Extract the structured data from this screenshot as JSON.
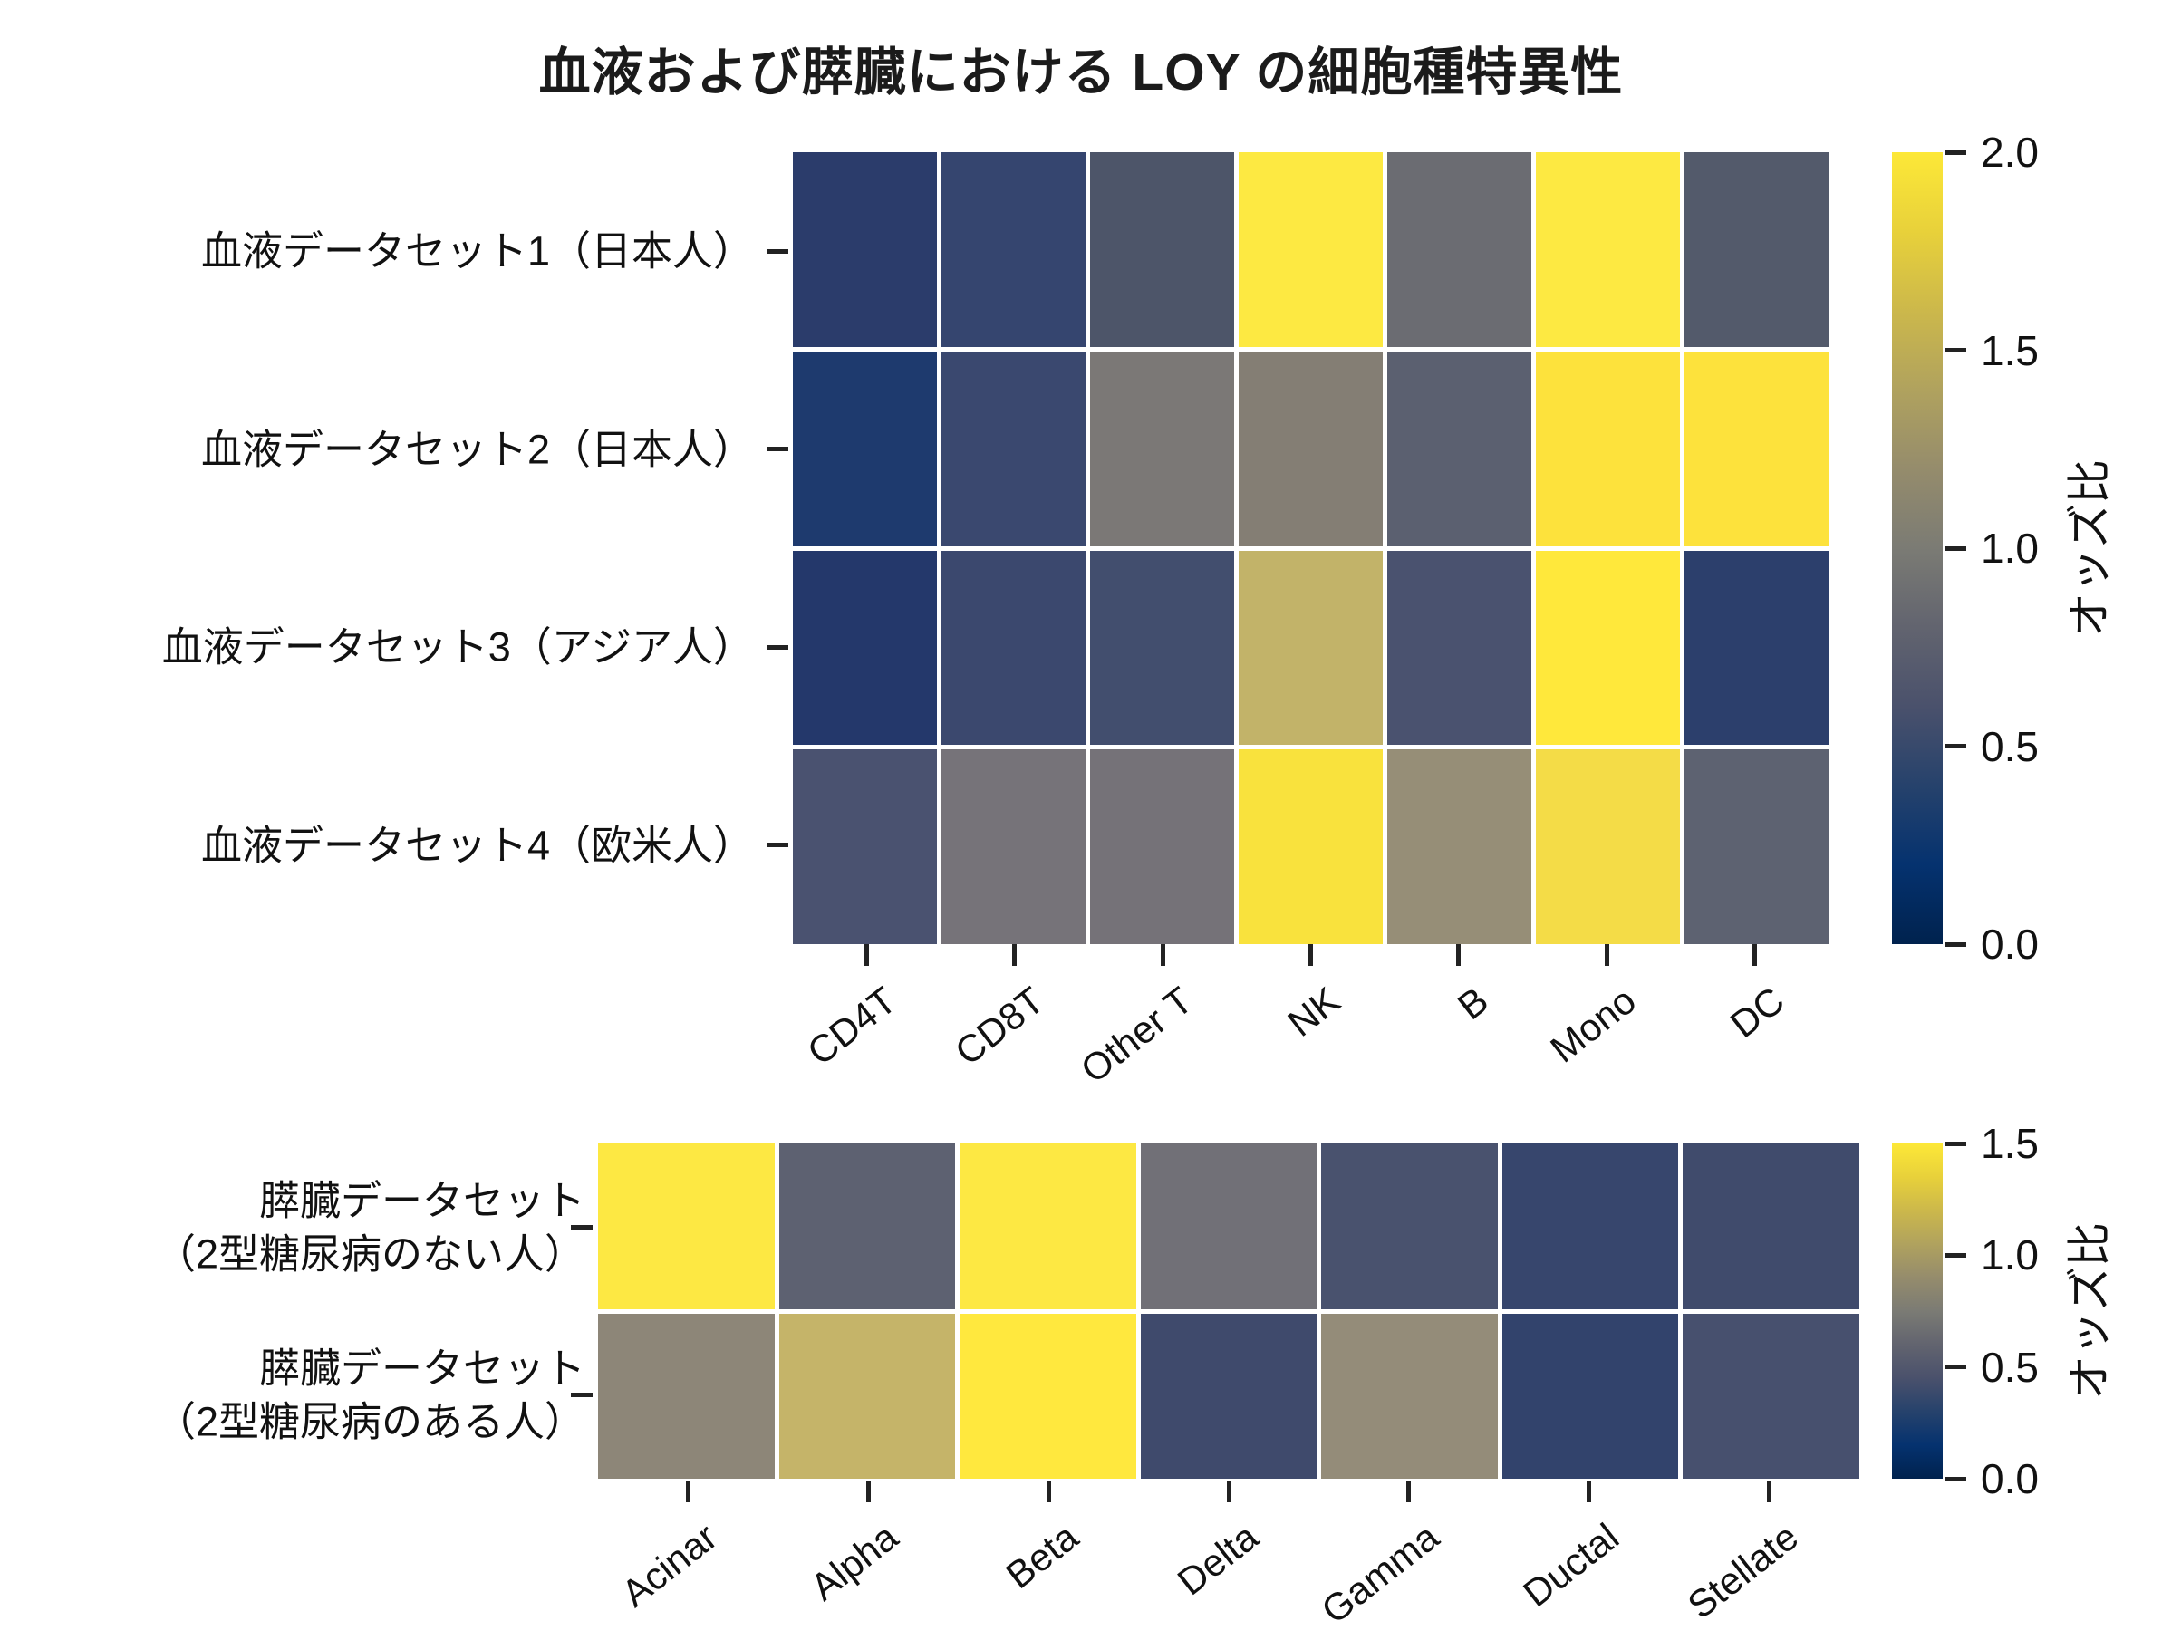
{
  "title": "血液および膵臓における LOY の細胞種特異性",
  "colors": {
    "background": "#ffffff",
    "text": "#1a1a1a",
    "tick": "#222222",
    "gridline": "#ffffff",
    "cividis_stops_bottom_to_top": [
      "#00224e",
      "#05326f",
      "#26426c",
      "#4a516c",
      "#62646f",
      "#7b7b74",
      "#958c6c",
      "#b0a25e",
      "#ccb84b",
      "#e8d13a",
      "#fde838"
    ]
  },
  "chart_data": [
    {
      "type": "heatmap",
      "name": "blood",
      "title": "",
      "categories": [
        "CD4T",
        "CD8T",
        "Other T",
        "NK",
        "B",
        "Mono",
        "DC"
      ],
      "rows": [
        {
          "lines": [
            "血液データセット1（日本人）"
          ]
        },
        {
          "lines": [
            "血液データセット2（日本人）"
          ]
        },
        {
          "lines": [
            "血液データセット3（アジア人）"
          ]
        },
        {
          "lines": [
            "血液データセット4（欧米人）"
          ]
        }
      ],
      "values": [
        [
          0.35,
          0.45,
          0.55,
          2.0,
          0.85,
          2.0,
          0.6
        ],
        [
          0.25,
          0.5,
          0.95,
          1.0,
          0.7,
          2.0,
          2.0
        ],
        [
          0.3,
          0.45,
          0.5,
          1.45,
          0.55,
          2.0,
          0.35
        ],
        [
          0.55,
          0.95,
          0.95,
          1.95,
          1.15,
          1.9,
          0.7
        ]
      ],
      "cell_colors": [
        [
          "#2b3c6b",
          "#35456f",
          "#4d5569",
          "#fde942",
          "#6b6c72",
          "#fde942",
          "#535a6b"
        ],
        [
          "#1e3a6e",
          "#3a486f",
          "#7b7876",
          "#847e74",
          "#5b6070",
          "#fde23c",
          "#fde23c"
        ],
        [
          "#24386b",
          "#3b486e",
          "#424e6e",
          "#c2b369",
          "#4a526f",
          "#ffe83b",
          "#2c3f6c"
        ],
        [
          "#4a5270",
          "#767379",
          "#757278",
          "#f9e23d",
          "#968e77",
          "#f4dc47",
          "#5d6271"
        ]
      ],
      "colorbar": {
        "label": "オッズ比",
        "min": 0.0,
        "max": 2.0,
        "ticks": [
          "2.0",
          "1.5",
          "1.0",
          "0.5",
          "0.0"
        ]
      },
      "grid": "off",
      "legend_position": "right-colorbar"
    },
    {
      "type": "heatmap",
      "name": "pancreas",
      "title": "",
      "categories": [
        "Acinar",
        "Alpha",
        "Beta",
        "Delta",
        "Gamma",
        "Ductal",
        "Stellate"
      ],
      "rows": [
        {
          "lines": [
            "膵臓データセット",
            "（2型糖尿病のない人）"
          ]
        },
        {
          "lines": [
            "膵臓データセット",
            "（2型糖尿病のある人）"
          ]
        }
      ],
      "values": [
        [
          1.5,
          0.55,
          1.5,
          0.65,
          0.4,
          0.3,
          0.35
        ],
        [
          0.8,
          1.15,
          1.5,
          0.35,
          0.85,
          0.3,
          0.4
        ]
      ],
      "cell_colors": [
        [
          "#fde843",
          "#5d6171",
          "#fde843",
          "#717077",
          "#49526e",
          "#37466d",
          "#404b6c"
        ],
        [
          "#8d8678",
          "#c5b469",
          "#ffe83e",
          "#3f4a6c",
          "#948c79",
          "#32436c",
          "#47506e"
        ]
      ],
      "colorbar": {
        "label": "オッズ比",
        "min": 0.0,
        "max": 1.5,
        "ticks": [
          "1.5",
          "1.0",
          "0.5",
          "0.0"
        ]
      },
      "grid": "off",
      "legend_position": "right-colorbar"
    }
  ]
}
